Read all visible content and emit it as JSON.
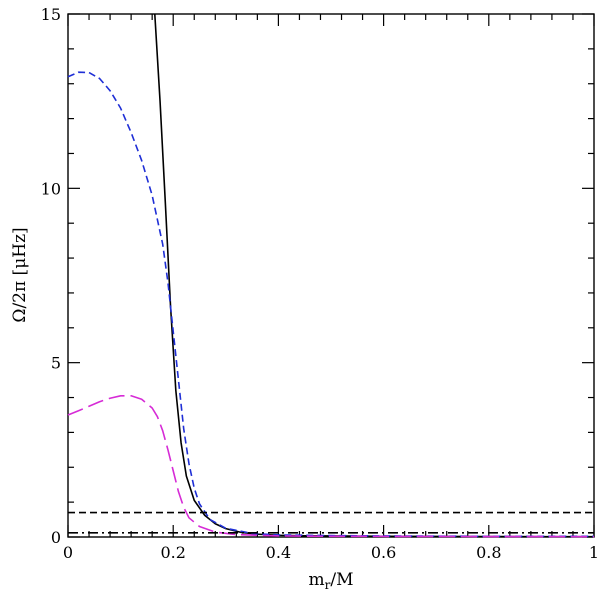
{
  "chart_data": {
    "type": "line",
    "xlabel": "m_r/M",
    "xlabel_main": "m",
    "xlabel_sub": "r",
    "xlabel_rest": "/M",
    "ylabel": "Ω/2π [μHz]",
    "xlim": [
      0,
      1
    ],
    "ylim": [
      0,
      15
    ],
    "grid": false,
    "xticks": [
      0,
      0.2,
      0.4,
      0.6,
      0.8,
      1
    ],
    "xtick_labels": [
      "0",
      "0.2",
      "0.4",
      "0.6",
      "0.8",
      "1"
    ],
    "yticks": [
      0,
      5,
      10,
      15
    ],
    "ytick_labels": [
      "0",
      "5",
      "10",
      "15"
    ],
    "series": [
      {
        "color": "#000000",
        "dash": "solid",
        "x": [
          0.165,
          0.175,
          0.185,
          0.195,
          0.205,
          0.215,
          0.225,
          0.24,
          0.26,
          0.28,
          0.3,
          0.33,
          0.36,
          0.4,
          0.45,
          0.5,
          0.6,
          0.7,
          0.8,
          0.9,
          1.0
        ],
        "y": [
          15.0,
          12.5,
          9.6,
          6.6,
          4.2,
          2.7,
          1.75,
          1.05,
          0.62,
          0.38,
          0.24,
          0.13,
          0.08,
          0.05,
          0.035,
          0.03,
          0.02,
          0.015,
          0.012,
          0.01,
          0.01
        ]
      },
      {
        "color": "#1f2fd6",
        "dash": "short-dash",
        "x": [
          0.0,
          0.02,
          0.04,
          0.06,
          0.08,
          0.1,
          0.12,
          0.14,
          0.16,
          0.18,
          0.19,
          0.2,
          0.21,
          0.22,
          0.23,
          0.24,
          0.25,
          0.27,
          0.3,
          0.35,
          0.4,
          0.5,
          0.6,
          0.8,
          1.0
        ],
        "y": [
          13.2,
          13.33,
          13.32,
          13.15,
          12.8,
          12.3,
          11.6,
          10.8,
          9.8,
          8.4,
          7.3,
          5.9,
          4.5,
          3.1,
          2.1,
          1.4,
          0.95,
          0.5,
          0.25,
          0.1,
          0.06,
          0.04,
          0.03,
          0.02,
          0.02
        ]
      },
      {
        "color": "#d62bd6",
        "dash": "long-dash",
        "x": [
          0.0,
          0.02,
          0.04,
          0.06,
          0.08,
          0.1,
          0.12,
          0.14,
          0.16,
          0.17,
          0.18,
          0.19,
          0.2,
          0.21,
          0.22,
          0.23,
          0.25,
          0.28,
          0.32,
          0.4,
          0.5,
          0.7,
          1.0
        ],
        "y": [
          3.5,
          3.62,
          3.75,
          3.88,
          3.98,
          4.05,
          4.05,
          3.95,
          3.7,
          3.45,
          3.05,
          2.5,
          1.9,
          1.3,
          0.85,
          0.55,
          0.3,
          0.14,
          0.07,
          0.03,
          0.02,
          0.015,
          0.01
        ]
      },
      {
        "color": "#000000",
        "dash": "short-dash",
        "x": [
          0,
          1
        ],
        "y": [
          0.7,
          0.7
        ]
      },
      {
        "color": "#000000",
        "dash": "dash-dot",
        "x": [
          0,
          1
        ],
        "y": [
          0.12,
          0.12
        ]
      }
    ]
  }
}
